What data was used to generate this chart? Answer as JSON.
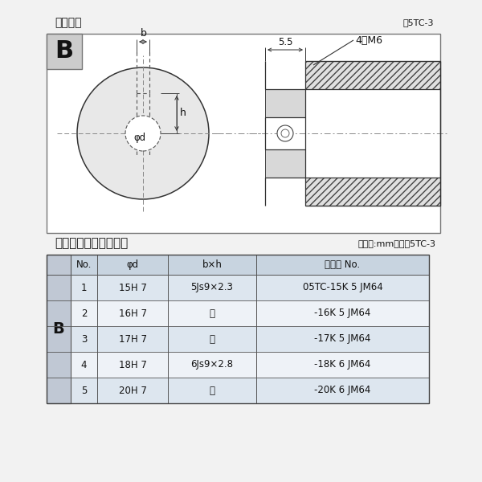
{
  "title_diagram": "軸穴形状",
  "fig_label": "図5TC-3",
  "table_title": "軸穴形状コード一覧表",
  "table_unit": "（単位:mm）　表5TC-3",
  "bg_color": "#f5f5f5",
  "diagram_bg": "#f0f0f0",
  "header_bg": "#c8d4e0",
  "row_bg_odd": "#dde6ef",
  "row_bg_even": "#eef2f7",
  "border_color": "#555555",
  "headers": [
    "No.",
    "φd",
    "b×h",
    "コード No."
  ],
  "col_label": "B",
  "rows": [
    [
      "1",
      "15H 7",
      "5Js9×2.3",
      "05TC-15K 5 JM64"
    ],
    [
      "2",
      "16H 7",
      "〃",
      "-16K 5 JM64"
    ],
    [
      "3",
      "17H 7",
      "〃",
      "-17K 5 JM64"
    ],
    [
      "4",
      "18H 7",
      "6Js9×2.8",
      "-18K 6 JM64"
    ],
    [
      "5",
      "20H 7",
      "〃",
      "-20K 6 JM64"
    ]
  ],
  "dim_55": "5.5",
  "dim_4m6": "4－M6",
  "dim_b": "b",
  "dim_h": "h",
  "dim_phi": "φd"
}
